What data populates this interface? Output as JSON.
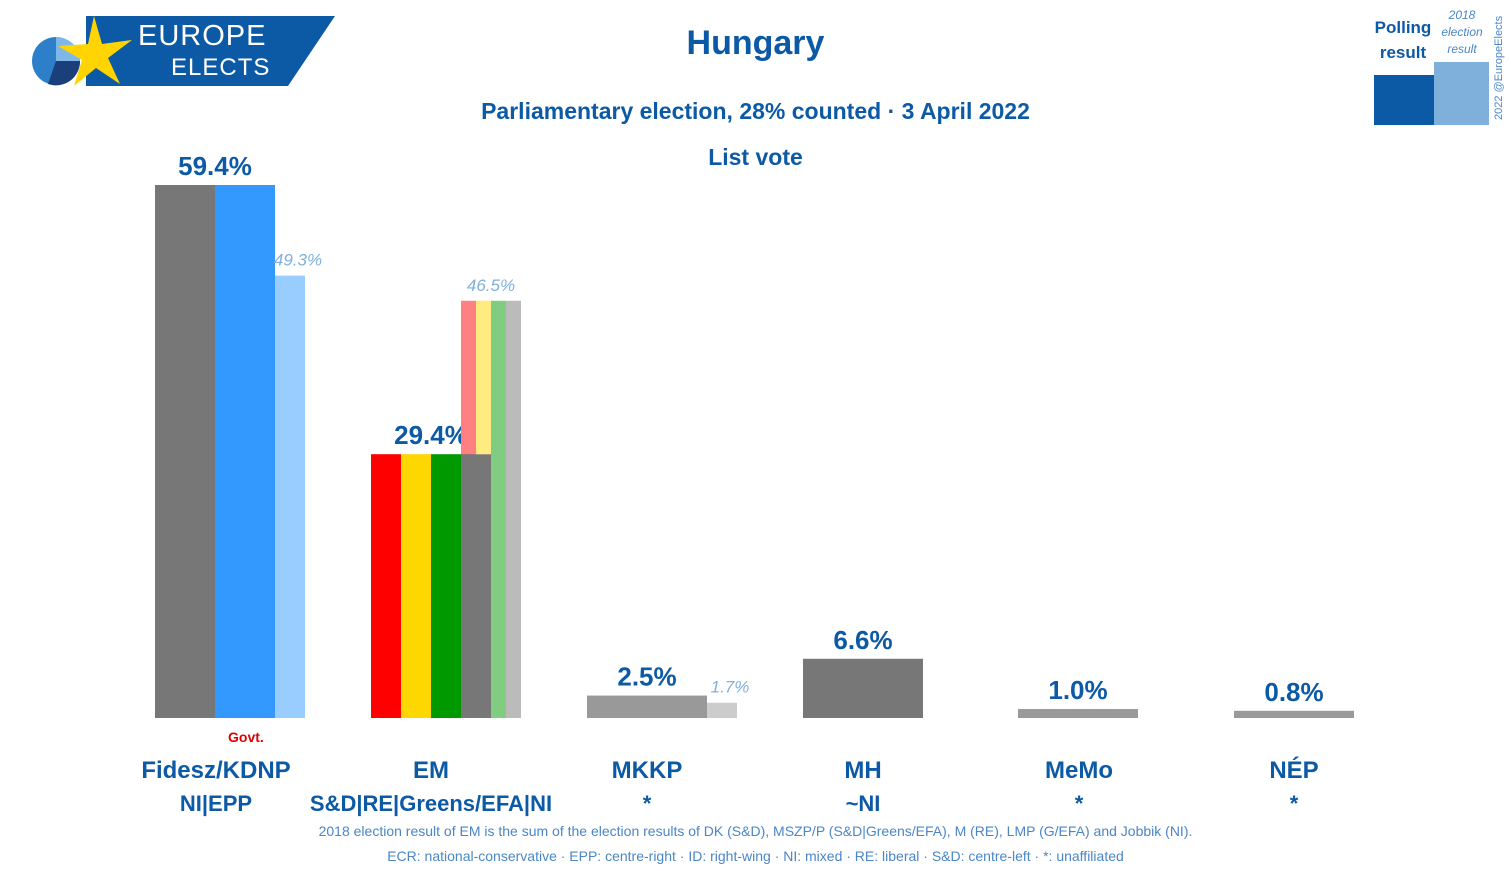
{
  "header": {
    "title": "Hungary",
    "subtitle": "Parliamentary election, 28% counted · 3 April 2022",
    "subtitle2": "List vote"
  },
  "logo": {
    "line1": "EUROPE",
    "line2": "ELECTS"
  },
  "legend": {
    "polling_line1": "Polling",
    "polling_line2": "result",
    "prev_line1": "2018",
    "prev_line2": "election",
    "prev_line3": "result",
    "polling_color": "#0c5aa6",
    "prev_color": "#7fb0dc"
  },
  "copyright": "2022 @EuropeElects",
  "govt_label": "Govt.",
  "notes": {
    "line1": "2018 election result of EM is the sum of the election results of DK (S&D), MSZP/P (S&D|Greens/EFA), M (RE), LMP (G/EFA) and Jobbik (NI).",
    "line2": "ECR: national-conservative · EPP: centre-right · ID: right-wing · NI: mixed · RE: liberal · S&D: centre-left · *: unaffiliated"
  },
  "chart_data": {
    "type": "bar",
    "title": "Hungary",
    "subtitle": "Parliamentary election, 28% counted · 3 April 2022 — List vote",
    "ylim": [
      0,
      60
    ],
    "categories": [
      "Fidesz/KDNP",
      "EM",
      "MKKP",
      "MH",
      "MeMo",
      "NÉP"
    ],
    "groups": [
      "NI|EPP",
      "S&D|RE|Greens/EFA|NI",
      "*",
      "~NI",
      "*",
      "*"
    ],
    "series": [
      {
        "name": "Polling result",
        "values": [
          59.4,
          29.4,
          2.5,
          6.6,
          1.0,
          0.8
        ],
        "labels": [
          "59.4%",
          "29.4%",
          "2.5%",
          "6.6%",
          "1.0%",
          "0.8%"
        ],
        "colors": [
          [
            "#777777",
            "#3399ff"
          ],
          [
            "#ff0000",
            "#ffd700",
            "#009900",
            "#777777"
          ],
          [
            "#999999"
          ],
          [
            "#777777"
          ],
          [
            "#999999"
          ],
          [
            "#999999"
          ]
        ]
      },
      {
        "name": "2018 election result",
        "values": [
          49.3,
          46.5,
          1.7,
          null,
          null,
          null
        ],
        "labels": [
          "49.3%",
          "46.5%",
          "1.7%",
          "",
          "",
          ""
        ],
        "colors": [
          [
            "#99ccff"
          ],
          [
            "#ff8080",
            "#ffeb80",
            "#80cc80",
            "#bbbbbb"
          ],
          [
            "#cccccc"
          ],
          [],
          [],
          []
        ]
      }
    ],
    "government": [
      "Fidesz/KDNP"
    ]
  }
}
